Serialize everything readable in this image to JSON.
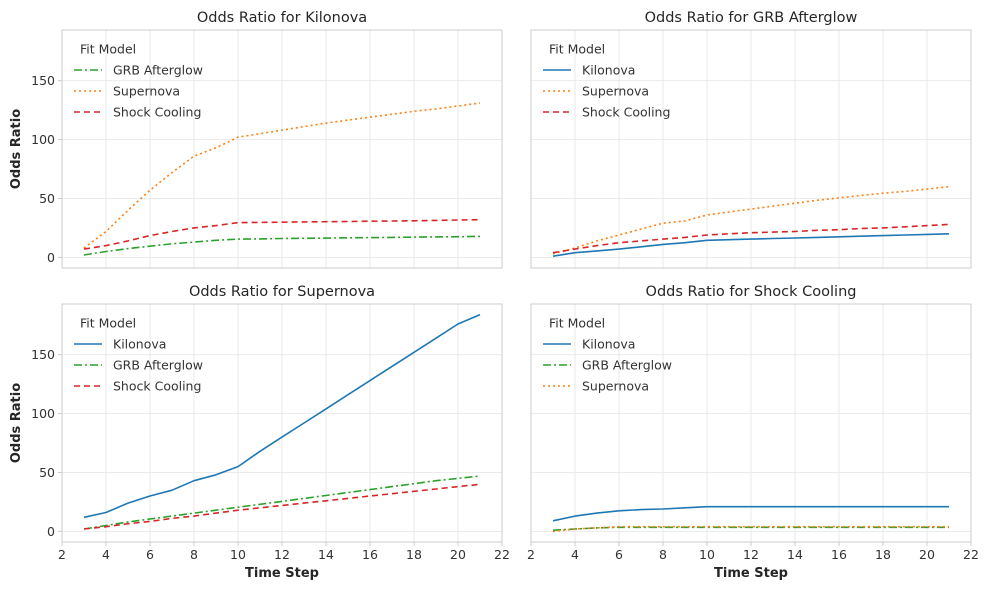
{
  "style": {
    "colors": {
      "Kilonova": "#1f77b4",
      "GRB Afterglow": "#2ca02c",
      "Supernova": "#ff7f0e",
      "Shock Cooling": "#d62728"
    },
    "dashes": {
      "Kilonova": "",
      "GRB Afterglow": "8,3,2,3",
      "Supernova": "2,3",
      "Shock Cooling": "6,4"
    }
  },
  "chart_data": [
    {
      "type": "line",
      "title": "Odds Ratio for Kilonova",
      "xlabel": "",
      "ylabel": "Odds Ratio",
      "xlim": [
        2,
        22
      ],
      "ylim": [
        -9,
        193
      ],
      "xticks": [],
      "yticks": [
        0,
        50,
        100,
        150
      ],
      "grid": true,
      "legend": {
        "title": "Fit Model",
        "placement": "upper-left"
      },
      "x": [
        3,
        4,
        5,
        6,
        7,
        8,
        9,
        10,
        11,
        12,
        13,
        14,
        15,
        16,
        17,
        18,
        19,
        20,
        21
      ],
      "series": [
        {
          "name": "GRB Afterglow",
          "values": [
            2,
            5,
            7.5,
            9.5,
            11.5,
            13,
            14.5,
            15.5,
            15.7,
            16,
            16.2,
            16.4,
            16.6,
            16.8,
            17,
            17.2,
            17.4,
            17.6,
            17.8
          ]
        },
        {
          "name": "Supernova",
          "values": [
            8,
            22,
            40,
            57,
            72,
            86,
            93,
            102,
            105,
            108,
            111,
            114,
            116.5,
            119,
            121.5,
            124,
            126,
            128.5,
            131
          ]
        },
        {
          "name": "Shock Cooling",
          "values": [
            7,
            10,
            14,
            18.5,
            22,
            25,
            27,
            29.5,
            29.7,
            29.9,
            30.1,
            30.3,
            30.5,
            30.7,
            30.9,
            31.1,
            31.4,
            31.7,
            32
          ]
        }
      ]
    },
    {
      "type": "line",
      "title": "Odds Ratio for GRB Afterglow",
      "xlabel": "",
      "ylabel": "",
      "xlim": [
        2,
        22
      ],
      "ylim": [
        -9,
        193
      ],
      "xticks": [],
      "yticks": [],
      "grid": true,
      "legend": {
        "title": "Fit Model",
        "placement": "upper-left"
      },
      "x": [
        3,
        4,
        5,
        6,
        7,
        8,
        9,
        10,
        11,
        12,
        13,
        14,
        15,
        16,
        17,
        18,
        19,
        20,
        21
      ],
      "series": [
        {
          "name": "Kilonova",
          "values": [
            1,
            4,
            5.5,
            7,
            9,
            11,
            12.5,
            14.5,
            15,
            15.5,
            16,
            16.5,
            17,
            17.5,
            18,
            18.5,
            19,
            19.5,
            20
          ]
        },
        {
          "name": "Supernova",
          "values": [
            3,
            8,
            14,
            19,
            24,
            29,
            31,
            36,
            38.5,
            41,
            43.5,
            46,
            48.5,
            50.5,
            52.5,
            54.5,
            56,
            58,
            60
          ]
        },
        {
          "name": "Shock Cooling",
          "values": [
            4,
            7,
            10,
            12.5,
            14,
            15.5,
            17,
            19,
            20,
            21,
            21.5,
            22,
            23,
            23.5,
            24.5,
            25,
            26,
            27,
            28
          ]
        }
      ]
    },
    {
      "type": "line",
      "title": "Odds Ratio for Supernova",
      "xlabel": "Time Step",
      "ylabel": "Odds Ratio",
      "xlim": [
        2,
        22
      ],
      "ylim": [
        -9,
        193
      ],
      "xticks": [
        2,
        4,
        6,
        8,
        10,
        12,
        14,
        16,
        18,
        20,
        22
      ],
      "yticks": [
        0,
        50,
        100,
        150
      ],
      "grid": true,
      "legend": {
        "title": "Fit Model",
        "placement": "upper-left"
      },
      "x": [
        3,
        4,
        5,
        6,
        7,
        8,
        9,
        10,
        11,
        12,
        13,
        14,
        15,
        16,
        17,
        18,
        19,
        20,
        21
      ],
      "series": [
        {
          "name": "Kilonova",
          "values": [
            12,
            16,
            24,
            30,
            35,
            43,
            48,
            55,
            68,
            80,
            92,
            104,
            116,
            128,
            140,
            152,
            164,
            176,
            184
          ]
        },
        {
          "name": "GRB Afterglow",
          "values": [
            2,
            5,
            8,
            10.5,
            13,
            15.5,
            18,
            20.5,
            23,
            25.5,
            28,
            30.5,
            33,
            35.5,
            38,
            40.5,
            43,
            45,
            47
          ]
        },
        {
          "name": "Shock Cooling",
          "values": [
            2,
            4,
            6.5,
            8.5,
            11,
            13,
            15.5,
            18,
            20,
            22,
            24,
            26,
            28,
            30,
            32,
            34,
            36,
            38,
            40
          ]
        }
      ]
    },
    {
      "type": "line",
      "title": "Odds Ratio for Shock Cooling",
      "xlabel": "Time Step",
      "ylabel": "",
      "xlim": [
        2,
        22
      ],
      "ylim": [
        -9,
        193
      ],
      "xticks": [
        2,
        4,
        6,
        8,
        10,
        12,
        14,
        16,
        18,
        20,
        22
      ],
      "yticks": [],
      "grid": true,
      "legend": {
        "title": "Fit Model",
        "placement": "upper-left"
      },
      "x": [
        3,
        4,
        5,
        6,
        7,
        8,
        9,
        10,
        11,
        12,
        13,
        14,
        15,
        16,
        17,
        18,
        19,
        20,
        21
      ],
      "series": [
        {
          "name": "Kilonova",
          "values": [
            9,
            13,
            15.5,
            17.5,
            18.5,
            19,
            20,
            21,
            21,
            21,
            21,
            21,
            21,
            21,
            21,
            21,
            21,
            21,
            21
          ]
        },
        {
          "name": "GRB Afterglow",
          "values": [
            1,
            2,
            3,
            3.5,
            3.5,
            3.5,
            3.5,
            3.5,
            3.5,
            3.5,
            3.5,
            3.5,
            3.5,
            3.5,
            3.5,
            3.5,
            3.5,
            3.5,
            3.5
          ]
        },
        {
          "name": "Supernova",
          "values": [
            0,
            2,
            3,
            4,
            4,
            4,
            4,
            4,
            4,
            4,
            4,
            4,
            4,
            4,
            4,
            4,
            4,
            4,
            4
          ]
        }
      ]
    }
  ]
}
